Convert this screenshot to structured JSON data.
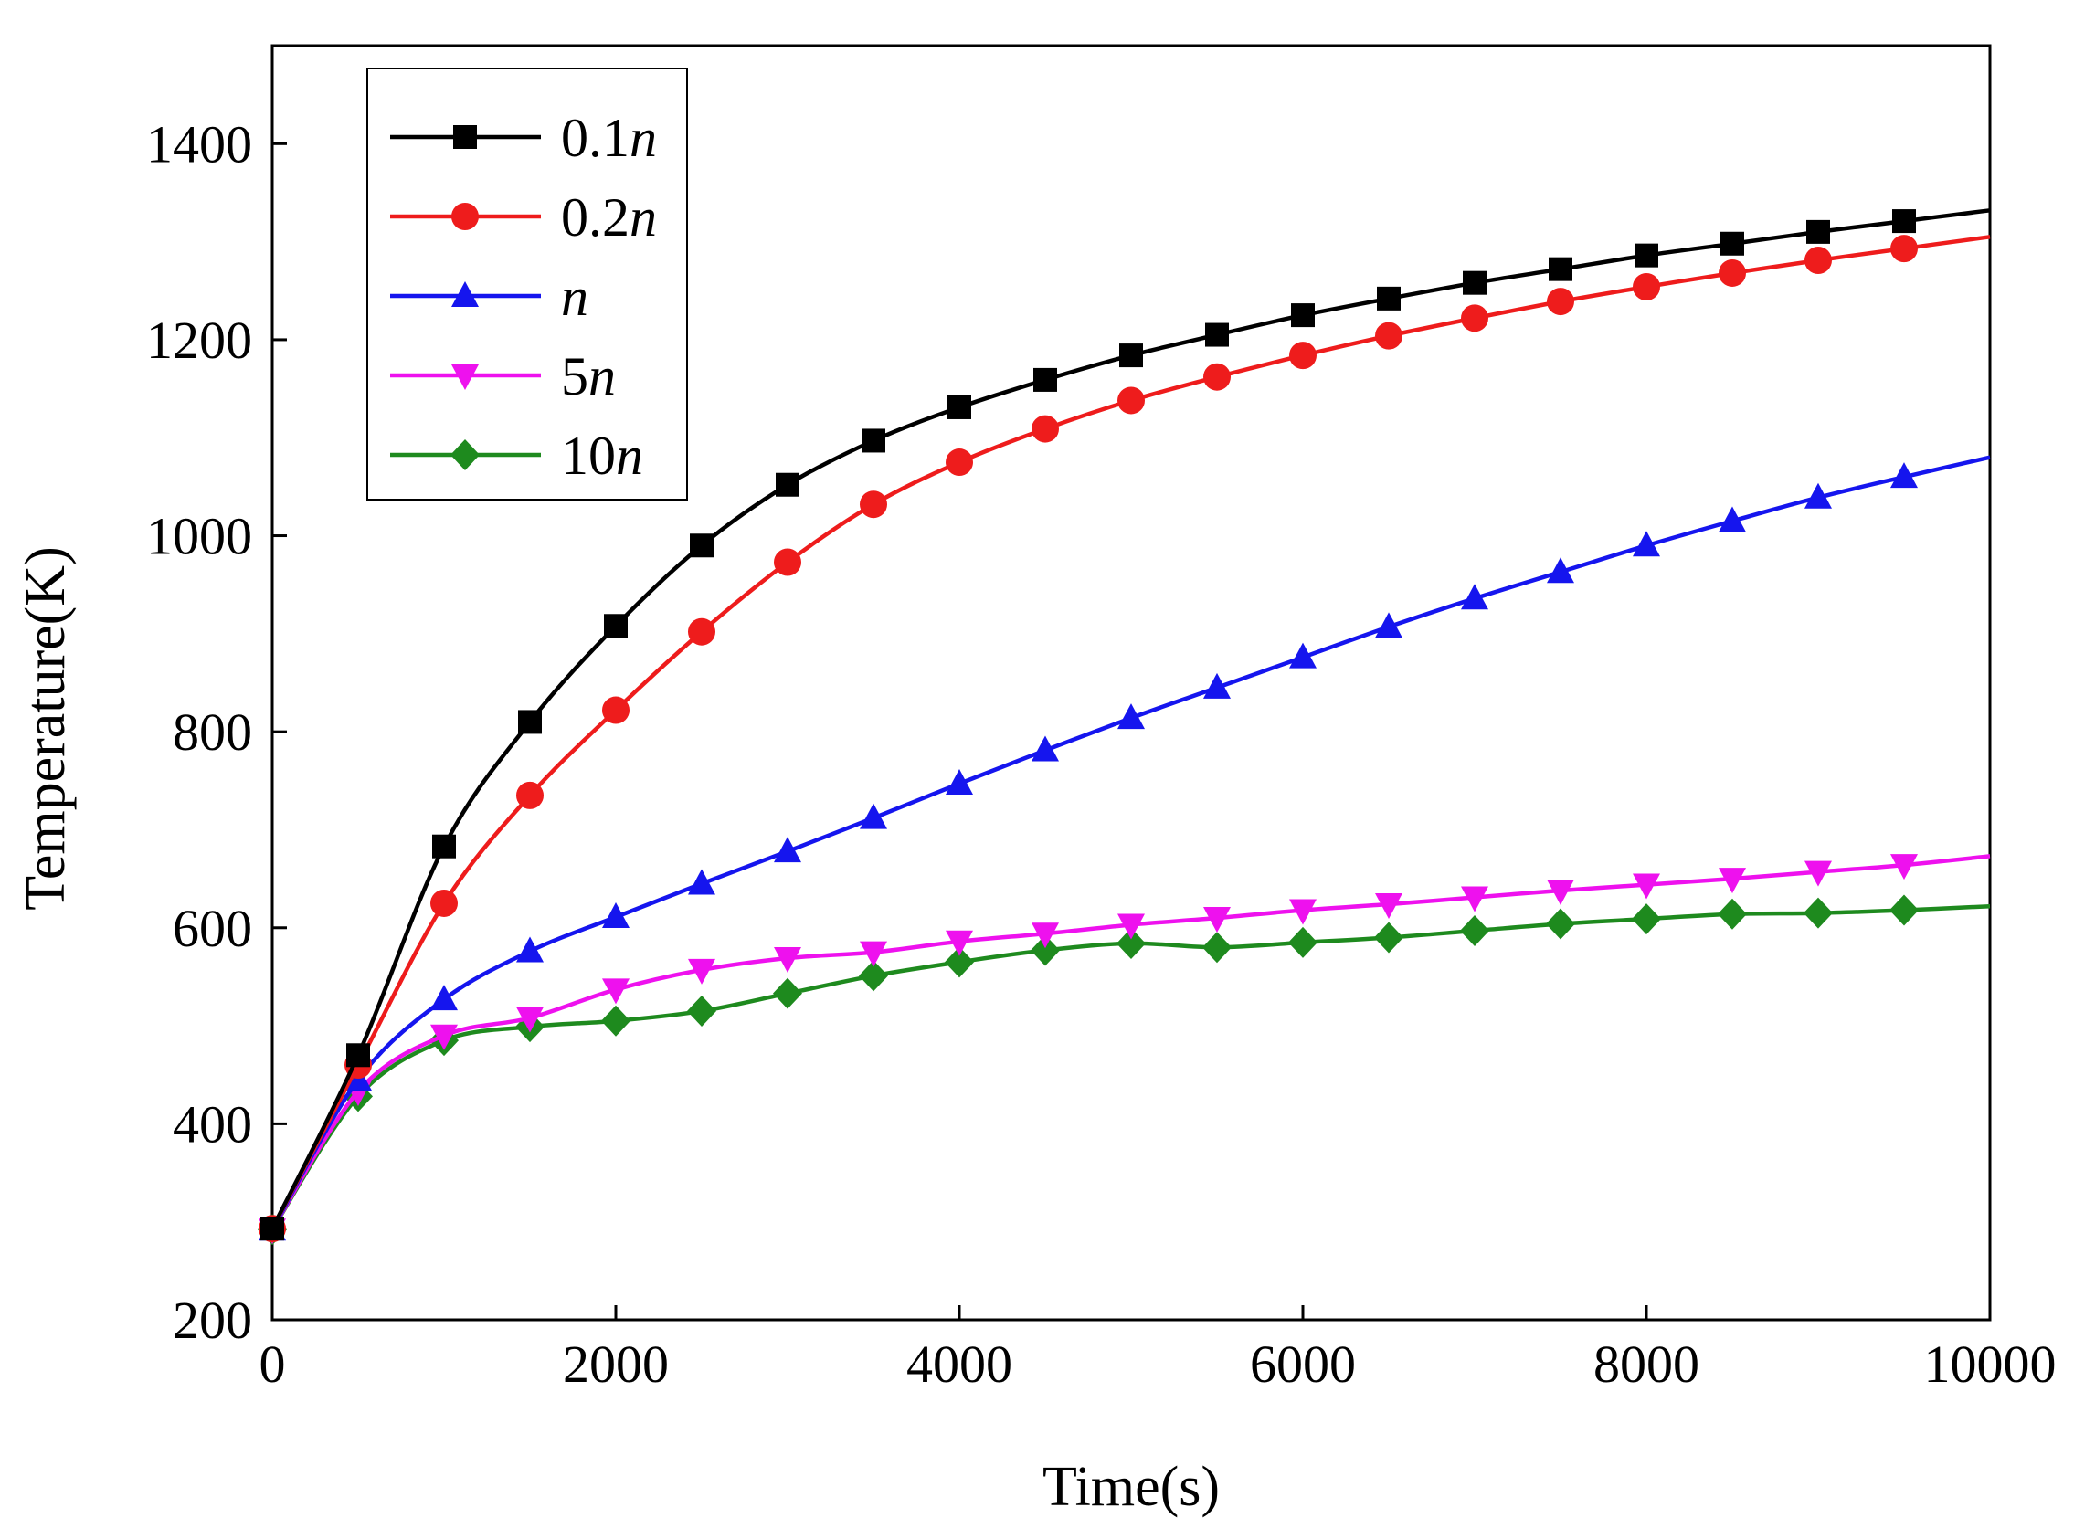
{
  "chart_data": {
    "type": "line",
    "xlabel": "Time(s)",
    "ylabel": "Temperature(K)",
    "xlim": [
      0,
      10000
    ],
    "ylim": [
      200,
      1500
    ],
    "xticks": [
      0,
      2000,
      4000,
      6000,
      8000,
      10000
    ],
    "yticks": [
      200,
      400,
      600,
      800,
      1000,
      1200,
      1400
    ],
    "grid": false,
    "legend_position": "top-left",
    "x": [
      0,
      500,
      1000,
      1500,
      2000,
      2500,
      3000,
      3500,
      4000,
      4500,
      5000,
      5500,
      6000,
      6500,
      7000,
      7500,
      8000,
      8500,
      9000,
      9500,
      10000
    ],
    "series": [
      {
        "name": "0.1n",
        "legend": {
          "prefix": "0.1",
          "italic": "n"
        },
        "color": "#000000",
        "marker": "square",
        "values": [
          293,
          470,
          683,
          810,
          908,
          990,
          1052,
          1097,
          1131,
          1159,
          1184,
          1205,
          1225,
          1242,
          1258,
          1272,
          1286,
          1298,
          1310,
          1321,
          1332
        ]
      },
      {
        "name": "0.2n",
        "legend": {
          "prefix": "0.2",
          "italic": "n"
        },
        "color": "#ee1c1c",
        "marker": "circle",
        "values": [
          293,
          460,
          625,
          735,
          822,
          902,
          973,
          1032,
          1075,
          1109,
          1138,
          1162,
          1184,
          1204,
          1222,
          1239,
          1254,
          1268,
          1281,
          1293,
          1305
        ]
      },
      {
        "name": "n",
        "legend": {
          "prefix": "",
          "italic": "n"
        },
        "color": "#1515ee",
        "marker": "triangle-up",
        "values": [
          292,
          445,
          527,
          576,
          611,
          645,
          678,
          712,
          747,
          781,
          814,
          845,
          876,
          907,
          936,
          963,
          990,
          1015,
          1039,
          1060,
          1080
        ]
      },
      {
        "name": "5n",
        "legend": {
          "prefix": "5",
          "italic": "n"
        },
        "color": "#ee11ee",
        "marker": "triangle-down",
        "values": [
          292,
          433,
          490,
          508,
          537,
          557,
          569,
          575,
          586,
          594,
          603,
          610,
          618,
          624,
          631,
          638,
          644,
          650,
          657,
          664,
          673
        ]
      },
      {
        "name": "10n",
        "legend": {
          "prefix": "10",
          "italic": "n"
        },
        "color": "#1e8a1e",
        "marker": "diamond",
        "values": [
          292,
          428,
          485,
          499,
          505,
          515,
          533,
          551,
          565,
          577,
          584,
          580,
          585,
          590,
          597,
          604,
          609,
          614,
          615,
          618,
          622
        ]
      }
    ]
  }
}
